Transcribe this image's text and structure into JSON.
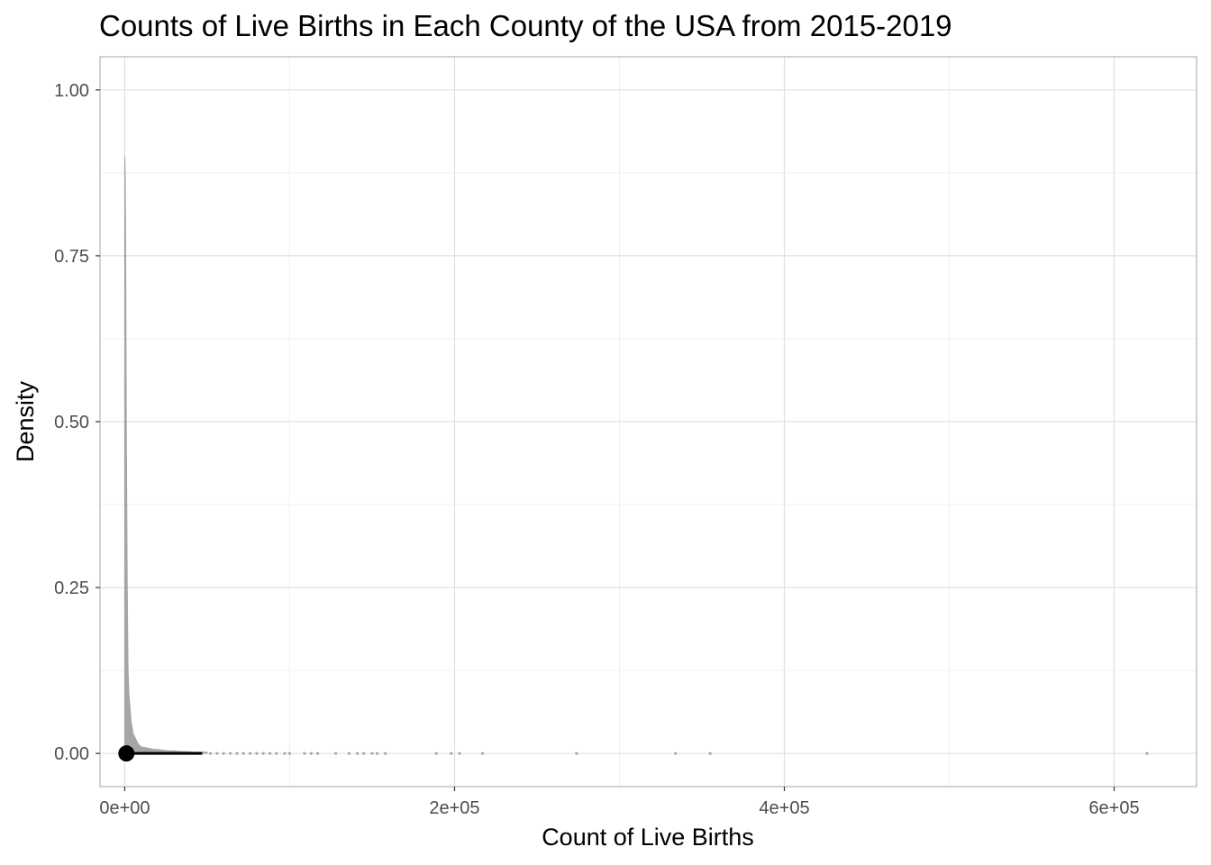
{
  "chart_data": {
    "type": "area",
    "title": "Counts of Live Births in Each County of the USA from 2015-2019",
    "xlabel": "Count of Live Births",
    "ylabel": "Density",
    "xlim": [
      -15000,
      650000
    ],
    "ylim": [
      -0.05,
      1.05
    ],
    "x_ticks": [
      0,
      200000,
      400000,
      600000
    ],
    "x_tick_labels": [
      "0e+00",
      "2e+05",
      "4e+05",
      "6e+05"
    ],
    "y_ticks": [
      0,
      0.25,
      0.5,
      0.75,
      1.0
    ],
    "y_tick_labels": [
      "0.00",
      "0.25",
      "0.50",
      "0.75",
      "1.00"
    ],
    "grid": true,
    "legend": "none",
    "colors": {
      "density_fill": "#a6a6a6",
      "points": "#a6a6a6",
      "summary": "#000000",
      "grid": "#e0e0e0",
      "panel_border": "#b3b3b3"
    },
    "density": {
      "x": [
        0,
        250,
        500,
        750,
        1000,
        1250,
        1500,
        1750,
        2000,
        2500,
        3000,
        3500,
        4000,
        4500,
        5000,
        6000,
        7000,
        8000,
        9000,
        10000,
        12000,
        14000,
        16000,
        18000,
        20000,
        23000,
        26000,
        30000,
        34000,
        38000,
        42000,
        46000,
        50000
      ],
      "y": [
        0.9,
        0.88,
        0.8,
        0.65,
        0.48,
        0.37,
        0.26,
        0.19,
        0.13,
        0.09,
        0.075,
        0.06,
        0.045,
        0.04,
        0.03,
        0.025,
        0.02,
        0.015,
        0.012,
        0.01,
        0.009,
        0.008,
        0.007,
        0.006,
        0.006,
        0.005,
        0.004,
        0.004,
        0.003,
        0.003,
        0.002,
        0.002,
        0.002
      ]
    },
    "points_x": [
      52000,
      56000,
      60000,
      64000,
      68000,
      72000,
      76000,
      80000,
      84000,
      88000,
      92000,
      97000,
      100000,
      109000,
      113000,
      117000,
      128000,
      136000,
      141000,
      145000,
      150000,
      153000,
      158000,
      189000,
      198000,
      203000,
      217000,
      274000,
      334000,
      355000,
      620000
    ],
    "summary": {
      "point_x": 1000,
      "point_y": 0,
      "interval": [
        0,
        47000
      ]
    }
  }
}
